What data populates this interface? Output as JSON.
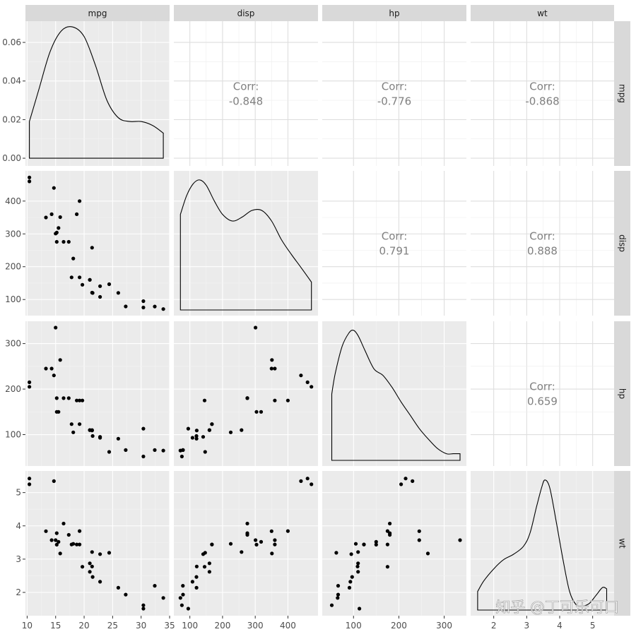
{
  "chart_data": {
    "type": "scatter",
    "title": "",
    "variables": [
      "mpg",
      "disp",
      "hp",
      "wt"
    ],
    "layout": "pairs-matrix: density on diagonal, scatter below, correlation above",
    "axes": {
      "mpg": {
        "ticks": [
          10,
          15,
          20,
          25,
          30,
          35
        ],
        "range": [
          9.7,
          35.0
        ]
      },
      "disp": {
        "ticks": [
          100,
          200,
          300,
          400
        ],
        "range": [
          51,
          492
        ]
      },
      "hp": {
        "ticks": [
          100,
          200,
          300
        ],
        "range": [
          31,
          349
        ]
      },
      "wt": {
        "ticks": [
          2,
          3,
          4,
          5
        ],
        "range": [
          1.3,
          5.65
        ]
      }
    },
    "density_axis": {
      "ticks": [
        "0.00",
        "0.02",
        "0.04",
        "0.06"
      ],
      "range": [
        -0.004,
        0.071
      ]
    },
    "observations": {
      "mpg": [
        21,
        21,
        22.8,
        21.4,
        18.7,
        18.1,
        14.3,
        24.4,
        22.8,
        19.2,
        17.8,
        16.4,
        17.3,
        15.2,
        10.4,
        10.4,
        14.7,
        32.4,
        30.4,
        33.9,
        21.5,
        15.5,
        15.2,
        13.3,
        19.2,
        27.3,
        26,
        30.4,
        15.8,
        19.7,
        15,
        21.4
      ],
      "disp": [
        160,
        160,
        108,
        258,
        360,
        225,
        360,
        146.7,
        140.8,
        167.6,
        167.6,
        275.8,
        275.8,
        275.8,
        472,
        460,
        440,
        78.7,
        75.7,
        71.1,
        120.1,
        318,
        304,
        350,
        400,
        79,
        120.3,
        95.1,
        351,
        145,
        301,
        121
      ],
      "hp": [
        110,
        110,
        93,
        110,
        175,
        105,
        245,
        62,
        95,
        123,
        123,
        180,
        180,
        180,
        205,
        215,
        230,
        66,
        52,
        65,
        97,
        150,
        150,
        245,
        175,
        66,
        91,
        113,
        264,
        175,
        335,
        109
      ],
      "wt": [
        2.62,
        2.875,
        2.32,
        3.215,
        3.44,
        3.46,
        3.57,
        3.19,
        3.15,
        3.44,
        3.44,
        4.07,
        3.73,
        3.78,
        5.25,
        5.424,
        5.345,
        2.2,
        1.615,
        1.835,
        2.465,
        3.52,
        3.435,
        3.84,
        3.845,
        1.935,
        2.14,
        1.513,
        3.17,
        2.77,
        3.57,
        2.78
      ]
    },
    "correlations": [
      {
        "row": "mpg",
        "col": "disp",
        "label": "Corr:",
        "value": "-0.848"
      },
      {
        "row": "mpg",
        "col": "hp",
        "label": "Corr:",
        "value": "-0.776"
      },
      {
        "row": "mpg",
        "col": "wt",
        "label": "Corr:",
        "value": "-0.868"
      },
      {
        "row": "disp",
        "col": "hp",
        "label": "Corr:",
        "value": "0.791"
      },
      {
        "row": "disp",
        "col": "wt",
        "label": "Corr:",
        "value": "0.888"
      },
      {
        "row": "hp",
        "col": "wt",
        "label": "Corr:",
        "value": "0.659"
      }
    ],
    "density_curves": {
      "mpg": {
        "x": [
          10.4,
          12,
          14,
          16,
          18,
          20,
          22,
          24,
          26,
          28,
          30,
          32,
          33.9
        ],
        "density": [
          0.019,
          0.035,
          0.055,
          0.066,
          0.068,
          0.063,
          0.048,
          0.03,
          0.021,
          0.019,
          0.019,
          0.017,
          0.013
        ]
      },
      "disp": {
        "x": [
          71.1,
          90,
          110,
          130,
          150,
          175,
          200,
          230,
          260,
          290,
          320,
          350,
          380,
          410,
          440,
          472
        ],
        "density": [
          0.72,
          0.86,
          0.95,
          0.98,
          0.94,
          0.82,
          0.72,
          0.67,
          0.7,
          0.75,
          0.75,
          0.67,
          0.53,
          0.42,
          0.32,
          0.21
        ]
      },
      "hp": {
        "x": [
          52,
          60,
          75,
          90,
          100,
          110,
          125,
          145,
          165,
          185,
          205,
          225,
          245,
          265,
          285,
          305,
          320,
          335
        ],
        "density": [
          0.5,
          0.66,
          0.86,
          0.96,
          0.98,
          0.94,
          0.83,
          0.69,
          0.64,
          0.55,
          0.44,
          0.34,
          0.24,
          0.16,
          0.09,
          0.05,
          0.05,
          0.05
        ]
      },
      "wt": {
        "x": [
          1.513,
          1.7,
          2.0,
          2.3,
          2.6,
          2.9,
          3.1,
          3.3,
          3.45,
          3.55,
          3.7,
          3.9,
          4.1,
          4.3,
          4.5,
          4.7,
          4.9,
          5.1,
          5.3,
          5.424
        ],
        "density": [
          0.14,
          0.22,
          0.31,
          0.38,
          0.42,
          0.48,
          0.58,
          0.78,
          0.92,
          0.98,
          0.92,
          0.66,
          0.38,
          0.14,
          0.04,
          0.03,
          0.05,
          0.11,
          0.17,
          0.16
        ]
      }
    }
  },
  "watermark": "知乎 @丁可乐可口",
  "colors": {
    "panel_bg": "#ebebeb",
    "strip_bg": "#d9d9d9",
    "grid_major": "#ffffff",
    "point": "#000000",
    "corr_text": "#808080",
    "tick_text": "#4d4d4d"
  }
}
